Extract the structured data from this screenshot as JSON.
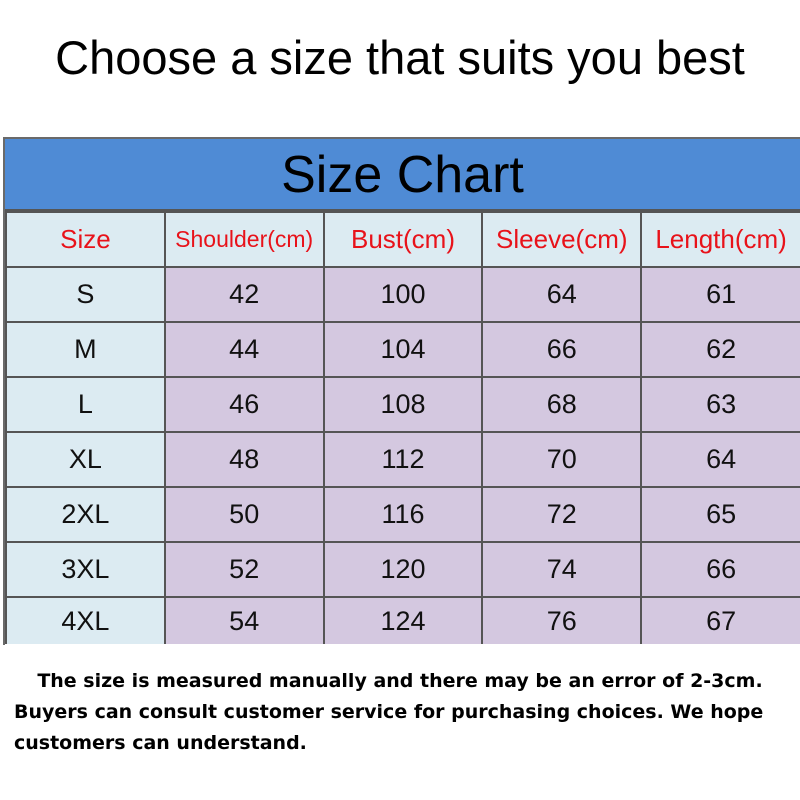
{
  "heading": "Choose a size that suits you best",
  "table": {
    "title": "Size Chart",
    "columns": [
      "Size",
      "Shoulder(cm)",
      "Bust(cm)",
      "Sleeve(cm)",
      "Length(cm)"
    ],
    "rows": [
      [
        "S",
        "42",
        "100",
        "64",
        "61"
      ],
      [
        "M",
        "44",
        "104",
        "66",
        "62"
      ],
      [
        "L",
        "46",
        "108",
        "68",
        "63"
      ],
      [
        "XL",
        "48",
        "112",
        "70",
        "64"
      ],
      [
        "2XL",
        "50",
        "116",
        "72",
        "65"
      ],
      [
        "3XL",
        "52",
        "120",
        "74",
        "66"
      ],
      [
        "4XL",
        "54",
        "124",
        "76",
        "67"
      ]
    ],
    "colors": {
      "title_band": "#4f8bd5",
      "header_text": "#e8121a",
      "size_cells": "#dcebf2",
      "value_cells": "#d4c8e0"
    }
  },
  "note": {
    "line1": "The size is measured manually and there may be an error of 2-3cm.",
    "line2": "Buyers can consult customer service for purchasing choices. We hope",
    "line3": "customers can understand."
  }
}
